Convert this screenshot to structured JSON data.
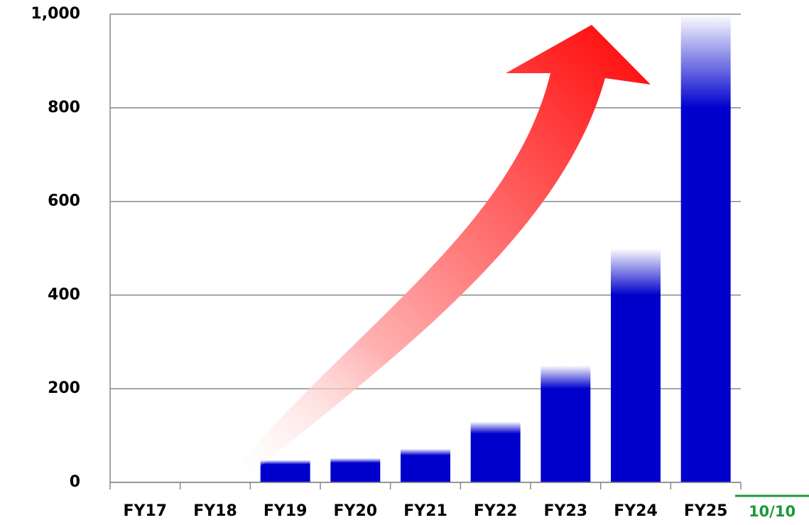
{
  "chart_data": {
    "type": "bar",
    "categories": [
      "FY17",
      "FY18",
      "FY19",
      "FY20",
      "FY21",
      "FY22",
      "FY23",
      "FY24",
      "FY25"
    ],
    "values": [
      0,
      0,
      48,
      52,
      72,
      130,
      250,
      500,
      1000
    ],
    "color": "#0000cc",
    "ylim": [
      0,
      1000
    ],
    "yticks": [
      0,
      200,
      400,
      600,
      800,
      {
        "value": 1000,
        "label": "1,000"
      }
    ],
    "grid": true
  },
  "page_number": "10/10"
}
